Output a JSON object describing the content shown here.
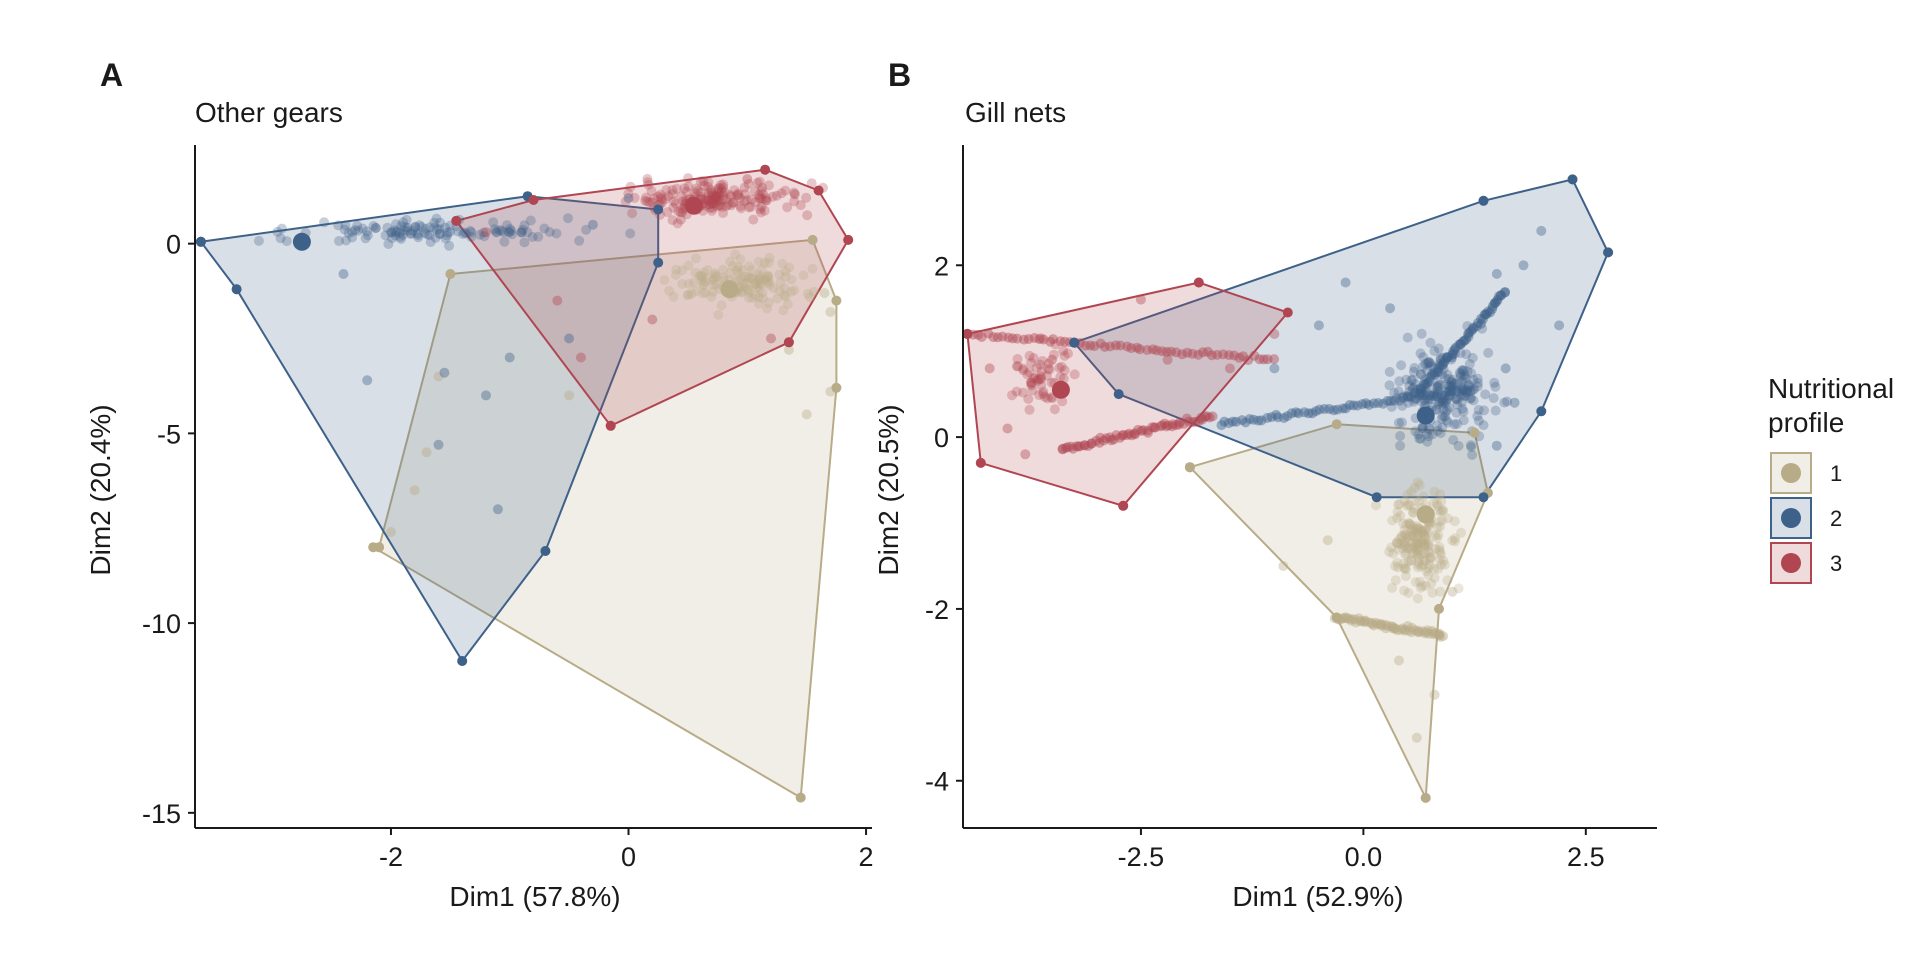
{
  "colors": {
    "1": "#b8ab88",
    "2": "#3e6189",
    "3": "#b04651"
  },
  "legend": {
    "title_lines": [
      "Nutritional",
      "profile"
    ],
    "entries": [
      {
        "group": "1",
        "label": "1"
      },
      {
        "group": "2",
        "label": "2"
      },
      {
        "group": "3",
        "label": "3"
      }
    ]
  },
  "chart_data": [
    {
      "type": "scatter",
      "panel": "A",
      "title": "Other gears",
      "xlabel": "Dim1 (57.8%)",
      "ylabel": "Dim2 (20.4%)",
      "xlim": [
        -3.65,
        2.05
      ],
      "ylim": [
        -15.4,
        2.6
      ],
      "xticks": [
        -2,
        0,
        2
      ],
      "yticks": [
        -15,
        -10,
        -5,
        0
      ],
      "grid": false,
      "legend_position": "right",
      "groups": [
        {
          "name": "1",
          "hull": [
            [
              -2.1,
              -8
            ],
            [
              -1.5,
              -0.8
            ],
            [
              1.55,
              0.1
            ],
            [
              1.75,
              -1.5
            ],
            [
              1.75,
              -3.8
            ],
            [
              1.45,
              -14.6
            ],
            [
              -2.15,
              -8.0
            ]
          ],
          "centroid": [
            0.85,
            -1.2
          ],
          "cloud": {
            "center": [
              0.95,
              -1.0
            ],
            "spread": [
              0.55,
              0.6
            ],
            "count": 140
          },
          "points": [
            [
              -2.1,
              -8
            ],
            [
              1.45,
              -14.6
            ],
            [
              1.35,
              -2.8
            ],
            [
              1.7,
              -3.9
            ],
            [
              -1.7,
              -5.5
            ],
            [
              -1.8,
              -6.5
            ],
            [
              -0.5,
              -4
            ],
            [
              -1.6,
              -3.5
            ],
            [
              1.65,
              -1.3
            ],
            [
              1.5,
              -4.5
            ],
            [
              1.7,
              -1.8
            ],
            [
              -2.0,
              -7.6
            ]
          ]
        },
        {
          "name": "2",
          "hull": [
            [
              -3.6,
              0.05
            ],
            [
              -0.85,
              1.25
            ],
            [
              0.25,
              0.9
            ],
            [
              0.25,
              -0.5
            ],
            [
              -0.7,
              -8.1
            ],
            [
              -1.4,
              -11.0
            ],
            [
              -3.3,
              -1.2
            ],
            [
              -3.6,
              0.05
            ]
          ],
          "centroid": [
            -2.75,
            0.05
          ],
          "cloud": {
            "center": [
              -1.6,
              0.3
            ],
            "spread": [
              1.2,
              0.3
            ],
            "count": 120
          },
          "points": [
            [
              -3.6,
              0.05
            ],
            [
              -1.4,
              -11.0
            ],
            [
              -0.7,
              -8.1
            ],
            [
              -1.1,
              -7.0
            ],
            [
              -1.55,
              -3.4
            ],
            [
              -1.6,
              -5.3
            ],
            [
              -2.2,
              -3.6
            ],
            [
              -1.2,
              -4.0
            ],
            [
              -0.9,
              0.3
            ],
            [
              -0.3,
              0.5
            ],
            [
              0.0,
              1.2
            ],
            [
              -3.3,
              -1.2
            ],
            [
              -2.4,
              -0.8
            ],
            [
              -1.0,
              -3.0
            ],
            [
              -0.5,
              -2.5
            ]
          ]
        },
        {
          "name": "3",
          "hull": [
            [
              -1.45,
              0.6
            ],
            [
              -0.8,
              1.15
            ],
            [
              1.15,
              1.95
            ],
            [
              1.6,
              1.4
            ],
            [
              1.85,
              0.1
            ],
            [
              1.35,
              -2.6
            ],
            [
              -0.15,
              -4.8
            ],
            [
              -1.45,
              0.6
            ]
          ],
          "centroid": [
            0.55,
            1.0
          ],
          "cloud": {
            "center": [
              0.7,
              1.2
            ],
            "spread": [
              0.7,
              0.5
            ],
            "count": 180
          },
          "points": [
            [
              1.85,
              0.1
            ],
            [
              1.35,
              -2.6
            ],
            [
              -0.15,
              -4.8
            ],
            [
              1.15,
              1.95
            ],
            [
              1.6,
              1.4
            ],
            [
              -0.6,
              -1.5
            ],
            [
              -0.4,
              -3.0
            ],
            [
              0.2,
              -2.0
            ],
            [
              1.2,
              -2.5
            ],
            [
              -1.2,
              0.3
            ],
            [
              1.4,
              1.3
            ],
            [
              1.0,
              1.7
            ]
          ]
        }
      ]
    },
    {
      "type": "scatter",
      "panel": "B",
      "title": "Gill nets",
      "xlabel": "Dim1 (52.9%)",
      "ylabel": "Dim2 (20.5%)",
      "xlim": [
        -4.5,
        3.3
      ],
      "ylim": [
        -4.55,
        3.4
      ],
      "xticks": [
        -2.5,
        0.0,
        2.5
      ],
      "yticks": [
        -4,
        -2,
        0,
        2
      ],
      "grid": false,
      "legend_position": "right",
      "groups": [
        {
          "name": "1",
          "hull": [
            [
              -1.95,
              -0.35
            ],
            [
              -0.3,
              0.15
            ],
            [
              1.25,
              0.05
            ],
            [
              1.4,
              -0.65
            ],
            [
              0.85,
              -2.0
            ],
            [
              0.7,
              -4.2
            ],
            [
              -0.3,
              -2.1
            ],
            [
              -1.95,
              -0.35
            ]
          ],
          "centroid": [
            0.7,
            -0.9
          ],
          "cloud": {
            "center": [
              0.65,
              -1.2
            ],
            "spread": [
              0.35,
              0.6
            ],
            "count": 200
          },
          "points": [
            [
              0.7,
              -4.2
            ],
            [
              -0.3,
              -2.1
            ],
            [
              0.85,
              -2.3
            ],
            [
              -1.95,
              -0.35
            ],
            [
              0.6,
              -3.5
            ],
            [
              0.8,
              -3.0
            ],
            [
              0.4,
              -2.6
            ],
            [
              -0.9,
              -1.5
            ],
            [
              1.0,
              -1.8
            ],
            [
              -0.4,
              -1.2
            ]
          ]
        },
        {
          "name": "2",
          "hull": [
            [
              -3.25,
              1.1
            ],
            [
              1.35,
              2.75
            ],
            [
              2.35,
              3.0
            ],
            [
              2.75,
              2.15
            ],
            [
              2.0,
              0.3
            ],
            [
              1.35,
              -0.7
            ],
            [
              0.15,
              -0.7
            ],
            [
              -2.75,
              0.5
            ],
            [
              -3.25,
              1.1
            ]
          ],
          "centroid": [
            0.7,
            0.25
          ],
          "cloud": {
            "center": [
              0.9,
              0.5
            ],
            "spread": [
              0.55,
              0.55
            ],
            "count": 220
          },
          "points": [
            [
              2.35,
              3.0
            ],
            [
              2.75,
              2.15
            ],
            [
              -3.25,
              1.1
            ],
            [
              1.35,
              2.75
            ],
            [
              2.0,
              2.4
            ],
            [
              2.2,
              1.3
            ],
            [
              1.8,
              2.0
            ],
            [
              1.5,
              1.9
            ],
            [
              1.6,
              0.8
            ],
            [
              1.7,
              0.4
            ],
            [
              1.5,
              -0.1
            ],
            [
              -1.0,
              0.8
            ],
            [
              -0.5,
              1.3
            ],
            [
              0.3,
              1.5
            ],
            [
              -0.2,
              1.8
            ]
          ]
        },
        {
          "name": "3",
          "hull": [
            [
              -4.45,
              1.2
            ],
            [
              -1.85,
              1.8
            ],
            [
              -0.85,
              1.45
            ],
            [
              -2.7,
              -0.8
            ],
            [
              -4.3,
              -0.3
            ],
            [
              -4.45,
              1.2
            ]
          ],
          "centroid": [
            -3.4,
            0.55
          ],
          "cloud": {
            "center": [
              -3.6,
              0.7
            ],
            "spread": [
              0.4,
              0.4
            ],
            "count": 60
          },
          "points": [
            [
              -4.45,
              1.2
            ],
            [
              -1.85,
              1.8
            ],
            [
              -2.5,
              1.6
            ],
            [
              -4.3,
              -0.3
            ],
            [
              -2.7,
              -0.8
            ],
            [
              -1.0,
              1.2
            ],
            [
              -4.0,
              0.1
            ],
            [
              -3.8,
              -0.2
            ],
            [
              -3.5,
              0.9
            ],
            [
              -4.2,
              0.8
            ],
            [
              -2.2,
              0.9
            ],
            [
              -1.5,
              0.8
            ]
          ]
        }
      ],
      "streaks": [
        {
          "group": "3",
          "from": [
            -4.45,
            1.2
          ],
          "to": [
            -1.0,
            0.9
          ]
        },
        {
          "group": "3",
          "from": [
            -3.4,
            -0.15
          ],
          "to": [
            -1.7,
            0.25
          ]
        },
        {
          "group": "2",
          "from": [
            -1.6,
            0.15
          ],
          "to": [
            1.2,
            0.55
          ]
        },
        {
          "group": "2",
          "from": [
            0.6,
            0.5
          ],
          "to": [
            1.6,
            1.7
          ]
        },
        {
          "group": "1",
          "from": [
            -0.3,
            -2.1
          ],
          "to": [
            0.9,
            -2.3
          ]
        }
      ]
    }
  ]
}
